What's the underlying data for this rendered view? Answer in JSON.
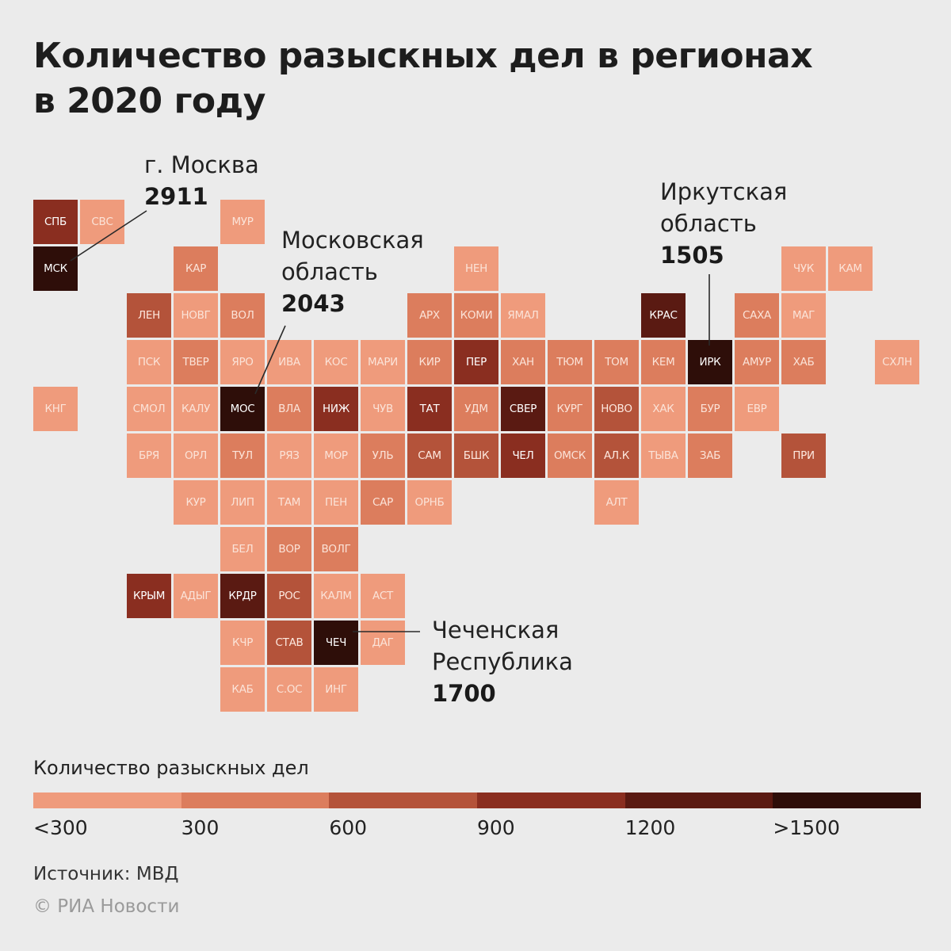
{
  "title": {
    "line1": "Количество разыскных дел в регионах",
    "line2": "в 2020 году"
  },
  "chart_data": {
    "type": "heatmap",
    "title": "Количество разыскных дел в регионах в 2020 году",
    "bins": [
      {
        "label": "<300",
        "color": "#ef9b7c"
      },
      {
        "label": "300",
        "color": "#dc7d5d"
      },
      {
        "label": "600",
        "color": "#b4533a"
      },
      {
        "label": "900",
        "color": "#8a2e20"
      },
      {
        "label": "1200",
        "color": "#5a1a12"
      },
      {
        "label": ">1500",
        "color": "#2e0e09"
      }
    ],
    "regions": [
      {
        "code": "СПБ",
        "col": 0,
        "row": 0,
        "bin": 3
      },
      {
        "code": "СВС",
        "col": 1,
        "row": 0,
        "bin": 0
      },
      {
        "code": "МУР",
        "col": 4,
        "row": 0,
        "bin": 0
      },
      {
        "code": "МСК",
        "col": 0,
        "row": 1,
        "bin": 5
      },
      {
        "code": "КАР",
        "col": 3,
        "row": 1,
        "bin": 1
      },
      {
        "code": "НЕН",
        "col": 9,
        "row": 1,
        "bin": 0
      },
      {
        "code": "ЧУК",
        "col": 16,
        "row": 1,
        "bin": 0
      },
      {
        "code": "КАМ",
        "col": 17,
        "row": 1,
        "bin": 0
      },
      {
        "code": "ЛЕН",
        "col": 2,
        "row": 2,
        "bin": 2
      },
      {
        "code": "НОВГ",
        "col": 3,
        "row": 2,
        "bin": 0
      },
      {
        "code": "ВОЛ",
        "col": 4,
        "row": 2,
        "bin": 1
      },
      {
        "code": "АРХ",
        "col": 8,
        "row": 2,
        "bin": 1
      },
      {
        "code": "КОМИ",
        "col": 9,
        "row": 2,
        "bin": 1
      },
      {
        "code": "ЯМАЛ",
        "col": 10,
        "row": 2,
        "bin": 0
      },
      {
        "code": "КРАС",
        "col": 13,
        "row": 2,
        "bin": 4
      },
      {
        "code": "САХА",
        "col": 15,
        "row": 2,
        "bin": 1
      },
      {
        "code": "МАГ",
        "col": 16,
        "row": 2,
        "bin": 0
      },
      {
        "code": "ПСК",
        "col": 2,
        "row": 3,
        "bin": 0
      },
      {
        "code": "ТВЕР",
        "col": 3,
        "row": 3,
        "bin": 1
      },
      {
        "code": "ЯРО",
        "col": 4,
        "row": 3,
        "bin": 0
      },
      {
        "code": "ИВА",
        "col": 5,
        "row": 3,
        "bin": 0
      },
      {
        "code": "КОС",
        "col": 6,
        "row": 3,
        "bin": 0
      },
      {
        "code": "МАРИ",
        "col": 7,
        "row": 3,
        "bin": 0
      },
      {
        "code": "КИР",
        "col": 8,
        "row": 3,
        "bin": 1
      },
      {
        "code": "ПЕР",
        "col": 9,
        "row": 3,
        "bin": 3
      },
      {
        "code": "ХАН",
        "col": 10,
        "row": 3,
        "bin": 1
      },
      {
        "code": "ТЮМ",
        "col": 11,
        "row": 3,
        "bin": 1
      },
      {
        "code": "ТОМ",
        "col": 12,
        "row": 3,
        "bin": 1
      },
      {
        "code": "КЕМ",
        "col": 13,
        "row": 3,
        "bin": 1
      },
      {
        "code": "ИРК",
        "col": 14,
        "row": 3,
        "bin": 5
      },
      {
        "code": "АМУР",
        "col": 15,
        "row": 3,
        "bin": 1
      },
      {
        "code": "ХАБ",
        "col": 16,
        "row": 3,
        "bin": 1
      },
      {
        "code": "СХЛН",
        "col": 18,
        "row": 3,
        "bin": 0
      },
      {
        "code": "КНГ",
        "col": 0,
        "row": 4,
        "bin": 0
      },
      {
        "code": "СМОЛ",
        "col": 2,
        "row": 4,
        "bin": 0
      },
      {
        "code": "КАЛУ",
        "col": 3,
        "row": 4,
        "bin": 0
      },
      {
        "code": "МОС",
        "col": 4,
        "row": 4,
        "bin": 5
      },
      {
        "code": "ВЛА",
        "col": 5,
        "row": 4,
        "bin": 1
      },
      {
        "code": "НИЖ",
        "col": 6,
        "row": 4,
        "bin": 3
      },
      {
        "code": "ЧУВ",
        "col": 7,
        "row": 4,
        "bin": 0
      },
      {
        "code": "ТАТ",
        "col": 8,
        "row": 4,
        "bin": 3
      },
      {
        "code": "УДМ",
        "col": 9,
        "row": 4,
        "bin": 1
      },
      {
        "code": "СВЕР",
        "col": 10,
        "row": 4,
        "bin": 4
      },
      {
        "code": "КУРГ",
        "col": 11,
        "row": 4,
        "bin": 1
      },
      {
        "code": "НОВО",
        "col": 12,
        "row": 4,
        "bin": 2
      },
      {
        "code": "ХАК",
        "col": 13,
        "row": 4,
        "bin": 0
      },
      {
        "code": "БУР",
        "col": 14,
        "row": 4,
        "bin": 1
      },
      {
        "code": "ЕВР",
        "col": 15,
        "row": 4,
        "bin": 0
      },
      {
        "code": "БРЯ",
        "col": 2,
        "row": 5,
        "bin": 0
      },
      {
        "code": "ОРЛ",
        "col": 3,
        "row": 5,
        "bin": 0
      },
      {
        "code": "ТУЛ",
        "col": 4,
        "row": 5,
        "bin": 1
      },
      {
        "code": "РЯЗ",
        "col": 5,
        "row": 5,
        "bin": 0
      },
      {
        "code": "МОР",
        "col": 6,
        "row": 5,
        "bin": 0
      },
      {
        "code": "УЛЬ",
        "col": 7,
        "row": 5,
        "bin": 1
      },
      {
        "code": "САМ",
        "col": 8,
        "row": 5,
        "bin": 2
      },
      {
        "code": "БШК",
        "col": 9,
        "row": 5,
        "bin": 2
      },
      {
        "code": "ЧЕЛ",
        "col": 10,
        "row": 5,
        "bin": 3
      },
      {
        "code": "ОМСК",
        "col": 11,
        "row": 5,
        "bin": 1
      },
      {
        "code": "АЛ.К",
        "col": 12,
        "row": 5,
        "bin": 2
      },
      {
        "code": "ТЫВА",
        "col": 13,
        "row": 5,
        "bin": 0
      },
      {
        "code": "ЗАБ",
        "col": 14,
        "row": 5,
        "bin": 1
      },
      {
        "code": "ПРИ",
        "col": 16,
        "row": 5,
        "bin": 2
      },
      {
        "code": "КУР",
        "col": 3,
        "row": 6,
        "bin": 0
      },
      {
        "code": "ЛИП",
        "col": 4,
        "row": 6,
        "bin": 0
      },
      {
        "code": "ТАМ",
        "col": 5,
        "row": 6,
        "bin": 0
      },
      {
        "code": "ПЕН",
        "col": 6,
        "row": 6,
        "bin": 0
      },
      {
        "code": "САР",
        "col": 7,
        "row": 6,
        "bin": 1
      },
      {
        "code": "ОРНБ",
        "col": 8,
        "row": 6,
        "bin": 0
      },
      {
        "code": "АЛТ",
        "col": 12,
        "row": 6,
        "bin": 0
      },
      {
        "code": "БЕЛ",
        "col": 4,
        "row": 7,
        "bin": 0
      },
      {
        "code": "ВОР",
        "col": 5,
        "row": 7,
        "bin": 1
      },
      {
        "code": "ВОЛГ",
        "col": 6,
        "row": 7,
        "bin": 1
      },
      {
        "code": "КРЫМ",
        "col": 2,
        "row": 8,
        "bin": 3
      },
      {
        "code": "АДЫГ",
        "col": 3,
        "row": 8,
        "bin": 0
      },
      {
        "code": "КРДР",
        "col": 4,
        "row": 8,
        "bin": 4
      },
      {
        "code": "РОС",
        "col": 5,
        "row": 8,
        "bin": 2
      },
      {
        "code": "КАЛМ",
        "col": 6,
        "row": 8,
        "bin": 0
      },
      {
        "code": "АСТ",
        "col": 7,
        "row": 8,
        "bin": 0
      },
      {
        "code": "КЧР",
        "col": 4,
        "row": 9,
        "bin": 0
      },
      {
        "code": "СТАВ",
        "col": 5,
        "row": 9,
        "bin": 2
      },
      {
        "code": "ЧЕЧ",
        "col": 6,
        "row": 9,
        "bin": 5
      },
      {
        "code": "ДАГ",
        "col": 7,
        "row": 9,
        "bin": 0
      },
      {
        "code": "КАБ",
        "col": 4,
        "row": 10,
        "bin": 0
      },
      {
        "code": "С.ОС",
        "col": 5,
        "row": 10,
        "bin": 0
      },
      {
        "code": "ИНГ",
        "col": 6,
        "row": 10,
        "bin": 0
      }
    ],
    "callouts": [
      {
        "region": "МСК",
        "name": "г. Москва",
        "value": 2911
      },
      {
        "region": "МОС",
        "name": "Московская\nобласть",
        "value": 2043
      },
      {
        "region": "ИРК",
        "name": "Иркутская\nобласть",
        "value": 1505
      },
      {
        "region": "ЧЕЧ",
        "name": "Чеченская\nРеспублика",
        "value": 1700
      }
    ]
  },
  "legend": {
    "title": "Количество разыскных дел"
  },
  "source": "Источник: МВД",
  "copyright": "© РИА Новости"
}
